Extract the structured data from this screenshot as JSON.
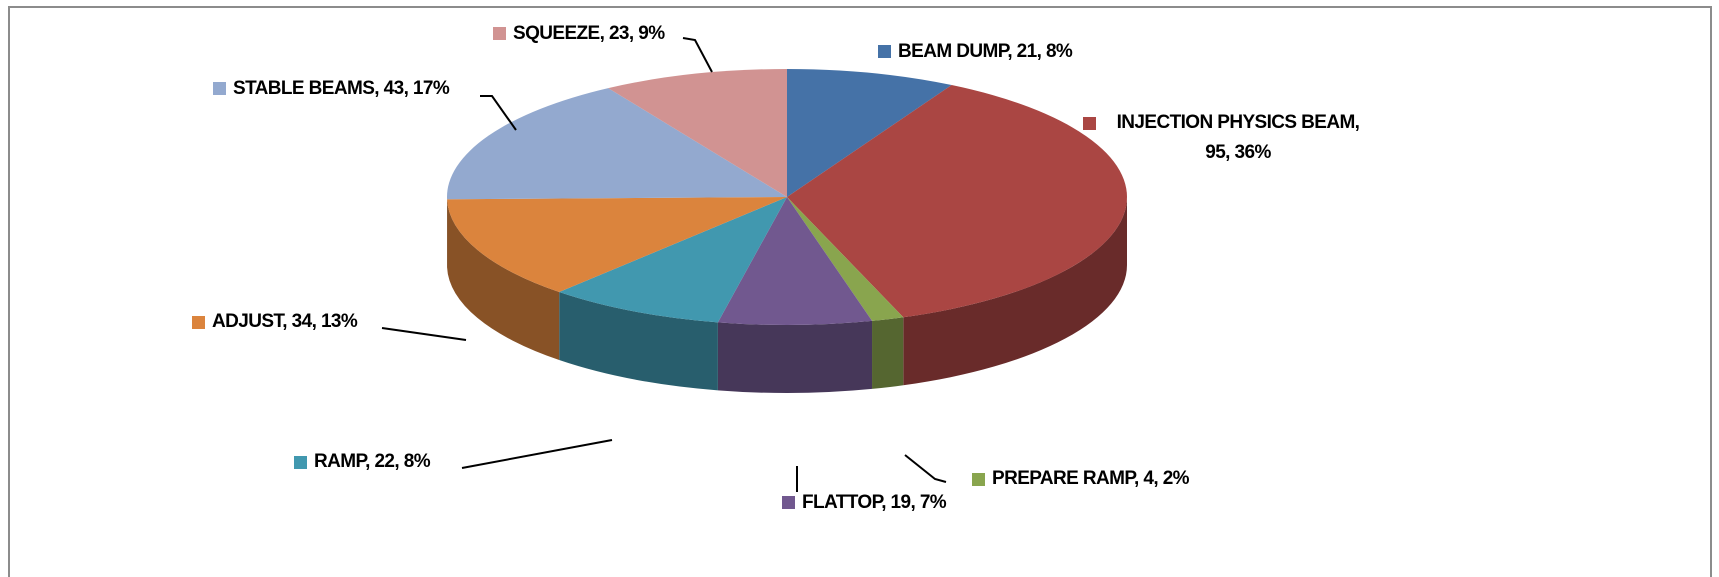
{
  "chart_data": {
    "type": "pie",
    "values": [
      21,
      95,
      4,
      19,
      22,
      34,
      43,
      23
    ],
    "value_labels": [
      "BEAM DUMP, 21, 8%",
      "INJECTION PHYSICS BEAM, 95, 36%",
      "PREPARE RAMP, 4, 2%",
      "FLATTOP, 19, 7%",
      "RAMP, 22, 8%",
      "ADJUST, 34, 13%",
      "STABLE BEAMS, 43, 17%",
      "SQUEEZE, 23, 9%"
    ],
    "colors": [
      "#4572a7",
      "#aa4643",
      "#89a54e",
      "#71588f",
      "#4198af",
      "#db843d",
      "#93a9cf",
      "#d19392"
    ]
  }
}
